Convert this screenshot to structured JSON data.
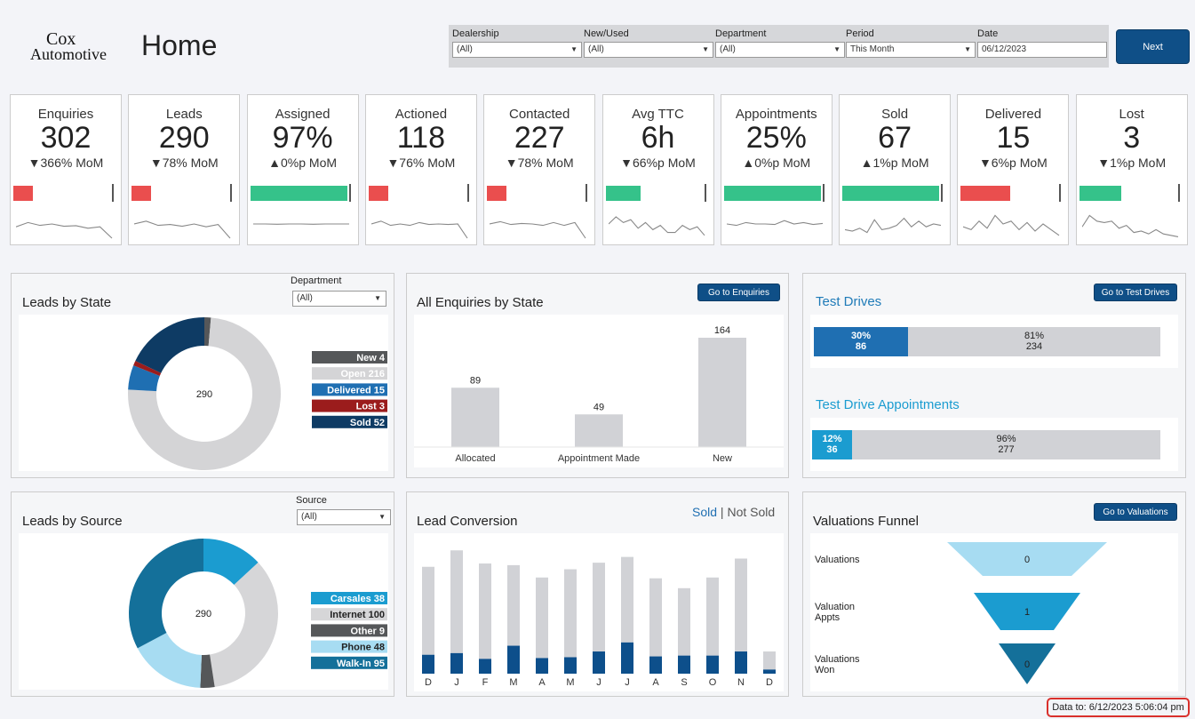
{
  "header": {
    "logo_line1": "Cox",
    "logo_line2": "Automotive",
    "title": "Home",
    "next_label": "Next"
  },
  "filters": [
    {
      "label": "Dealership",
      "value": "(All)"
    },
    {
      "label": "New/Used",
      "value": "(All)"
    },
    {
      "label": "Department",
      "value": "(All)"
    },
    {
      "label": "Period",
      "value": "This Month"
    },
    {
      "label": "Date",
      "value": "06/12/2023"
    }
  ],
  "kpis": [
    {
      "title": "Enquiries",
      "value": "302",
      "delta": "▼366% MoM",
      "bar_color": "#ea4e4e",
      "bar_fraction": 0.2,
      "spark": [
        0.4,
        0.55,
        0.45,
        0.5,
        0.42,
        0.44,
        0.35,
        0.4,
        0.0
      ]
    },
    {
      "title": "Leads",
      "value": "290",
      "delta": "▼78% MoM",
      "bar_color": "#ea4e4e",
      "bar_fraction": 0.2,
      "spark": [
        0.5,
        0.6,
        0.45,
        0.48,
        0.42,
        0.5,
        0.4,
        0.48,
        0.0
      ]
    },
    {
      "title": "Assigned",
      "value": "97%",
      "delta": "▲0%p MoM",
      "bar_color": "#35c28a",
      "bar_fraction": 0.98,
      "spark": [
        0.5,
        0.5,
        0.49,
        0.5,
        0.5,
        0.49,
        0.5,
        0.5,
        0.5
      ]
    },
    {
      "title": "Actioned",
      "value": "118",
      "delta": "▼76% MoM",
      "bar_color": "#ea4e4e",
      "bar_fraction": 0.2,
      "spark": [
        0.5,
        0.6,
        0.45,
        0.5,
        0.45,
        0.55,
        0.48,
        0.5,
        0.48,
        0.5,
        0.0
      ]
    },
    {
      "title": "Contacted",
      "value": "227",
      "delta": "▼78% MoM",
      "bar_color": "#ea4e4e",
      "bar_fraction": 0.2,
      "spark": [
        0.5,
        0.58,
        0.48,
        0.52,
        0.5,
        0.45,
        0.55,
        0.45,
        0.55,
        0.0
      ]
    },
    {
      "title": "Avg TTC",
      "value": "6h",
      "delta": "▼66%p MoM",
      "bar_color": "#35c28a",
      "bar_fraction": 0.35,
      "spark": [
        0.5,
        0.75,
        0.55,
        0.65,
        0.35,
        0.55,
        0.3,
        0.45,
        0.2,
        0.2,
        0.45,
        0.3,
        0.4,
        0.1
      ]
    },
    {
      "title": "Appointments",
      "value": "25%",
      "delta": "▲0%p MoM",
      "bar_color": "#35c28a",
      "bar_fraction": 0.98,
      "spark": [
        0.5,
        0.45,
        0.55,
        0.5,
        0.5,
        0.48,
        0.62,
        0.5,
        0.55,
        0.48,
        0.52
      ]
    },
    {
      "title": "Sold",
      "value": "67",
      "delta": "▲1%p MoM",
      "bar_color": "#35c28a",
      "bar_fraction": 0.98,
      "spark": [
        0.3,
        0.25,
        0.35,
        0.2,
        0.65,
        0.3,
        0.35,
        0.45,
        0.7,
        0.4,
        0.6,
        0.4,
        0.5,
        0.45
      ]
    },
    {
      "title": "Delivered",
      "value": "15",
      "delta": "▼6%p MoM",
      "bar_color": "#ea4e4e",
      "bar_fraction": 0.5,
      "spark": [
        0.4,
        0.3,
        0.6,
        0.35,
        0.8,
        0.5,
        0.6,
        0.3,
        0.55,
        0.25,
        0.5,
        0.3,
        0.1
      ]
    },
    {
      "title": "Lost",
      "value": "3",
      "delta": "▼1%p MoM",
      "bar_color": "#35c28a",
      "bar_fraction": 0.42,
      "spark": [
        0.4,
        0.8,
        0.6,
        0.55,
        0.6,
        0.35,
        0.45,
        0.2,
        0.25,
        0.15,
        0.3,
        0.15,
        0.1,
        0.05
      ]
    }
  ],
  "leads_by_state": {
    "title": "Leads by State",
    "filter_label": "Department",
    "filter_value": "(All)",
    "center_value": "290",
    "slices": [
      {
        "label": "New 4",
        "value": 4,
        "color": "#555759"
      },
      {
        "label": "Open 216",
        "value": 216,
        "color": "#d4d4d6"
      },
      {
        "label": "Delivered 15",
        "value": 15,
        "color": "#1f6fb2"
      },
      {
        "label": "Lost 3",
        "value": 3,
        "color": "#9b1c1c"
      },
      {
        "label": "Sold 52",
        "value": 52,
        "color": "#0e3b64"
      }
    ]
  },
  "enquiries_by_state": {
    "title": "All Enquiries by State",
    "button": "Go to Enquiries",
    "chart_data": {
      "type": "bar",
      "categories": [
        "Allocated",
        "Appointment Made",
        "New"
      ],
      "values": [
        89,
        49,
        164
      ],
      "title": "All Enquiries by State",
      "ylim": [
        0,
        180
      ]
    }
  },
  "test_drives": {
    "title": "Test Drives",
    "button": "Go to Test Drives",
    "left_pct": "30%",
    "left_count": "86",
    "right_pct": "81%",
    "right_count": "234",
    "left_fraction": 0.27
  },
  "test_drive_appts": {
    "title": "Test Drive Appointments",
    "left_pct": "12%",
    "left_count": "36",
    "right_pct": "96%",
    "right_count": "277",
    "left_fraction": 0.115
  },
  "leads_by_source": {
    "title": "Leads by Source",
    "filter_label": "Source",
    "filter_value": "(All)",
    "center_value": "290",
    "slices": [
      {
        "label": "Carsales 38",
        "value": 38,
        "color": "#1b9cd0"
      },
      {
        "label": "Internet 100",
        "value": 100,
        "color": "#d6d6d8"
      },
      {
        "label": "Other 9",
        "value": 9,
        "color": "#555759"
      },
      {
        "label": "Phone 48",
        "value": 48,
        "color": "#a7dcf2"
      },
      {
        "label": "Walk-In 95",
        "value": 95,
        "color": "#14709a"
      }
    ]
  },
  "lead_conversion": {
    "title": "Lead Conversion",
    "legend_sold": "Sold",
    "legend_sep": "|",
    "legend_not_sold": "Not Sold",
    "chart_data": {
      "type": "bar",
      "categories": [
        "D",
        "J",
        "F",
        "M",
        "A",
        "M",
        "J",
        "J",
        "A",
        "S",
        "O",
        "N",
        "D"
      ],
      "series": [
        {
          "name": "Sold",
          "values": [
            23,
            25,
            18,
            34,
            19,
            20,
            27,
            38,
            21,
            22,
            22,
            27,
            5
          ]
        },
        {
          "name": "Not Sold",
          "values": [
            107,
            125,
            116,
            98,
            98,
            107,
            108,
            104,
            95,
            82,
            95,
            113,
            22
          ]
        }
      ],
      "ylim": [
        0,
        160
      ]
    }
  },
  "valuations_funnel": {
    "title": "Valuations Funnel",
    "button": "Go to Valuations",
    "stages": [
      {
        "label": "Valuations",
        "value": "0",
        "color": "#a7dcf2"
      },
      {
        "label": "Valuation Appts",
        "value": "1",
        "color": "#1b9cd0"
      },
      {
        "label": "Valuations Won",
        "value": "0",
        "color": "#14709a"
      }
    ]
  },
  "footer": {
    "data_to": "Data to: 6/12/2023 5:06:04 pm"
  }
}
